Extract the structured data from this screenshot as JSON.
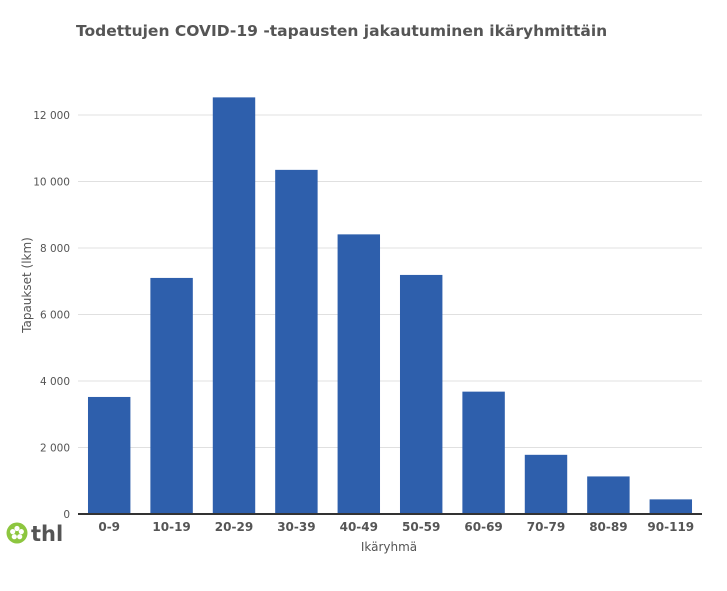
{
  "chart_data": {
    "type": "bar",
    "title": "Todettujen COVID-19 -tapausten jakautuminen ikäryhmittäin",
    "xlabel": "Ikäryhmä",
    "ylabel": "Tapaukset (lkm)",
    "categories": [
      "0-9",
      "10-19",
      "20-29",
      "30-39",
      "40-49",
      "50-59",
      "60-69",
      "70-79",
      "80-89",
      "90-119"
    ],
    "values": [
      3520,
      7100,
      12530,
      10350,
      8410,
      7190,
      3680,
      1780,
      1130,
      440
    ],
    "ylim": [
      0,
      13000
    ],
    "yticks": [
      0,
      2000,
      4000,
      6000,
      8000,
      10000,
      12000
    ],
    "ytick_labels": [
      "0",
      "2 000",
      "4 000",
      "6 000",
      "8 000",
      "10 000",
      "12 000"
    ],
    "grid": true,
    "bar_color": "#2e5fac"
  },
  "logo": {
    "text": "thl",
    "color": "#8dc63f",
    "text_color": "#555555"
  }
}
